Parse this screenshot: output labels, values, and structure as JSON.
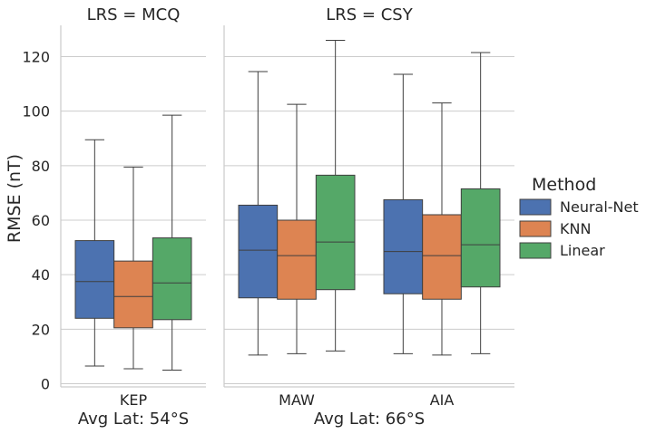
{
  "chart_data": {
    "type": "box",
    "ylabel": "RMSE (nT)",
    "ylim": [
      -1,
      133
    ],
    "yticks": [
      0,
      20,
      40,
      60,
      80,
      100,
      120
    ],
    "ytick_labels": [
      "0",
      "20",
      "40",
      "60",
      "80",
      "100",
      "120"
    ],
    "legend": {
      "title": "Method",
      "position": "right",
      "entries": [
        {
          "name": "Neural-Net",
          "color": "#4c72b0"
        },
        {
          "name": "KNN",
          "color": "#dd8452"
        },
        {
          "name": "Linear",
          "color": "#55a868"
        }
      ]
    },
    "panels": [
      {
        "title": "LRS = MCQ",
        "xlabel": "Avg Lat: 54°S",
        "categories": [
          "KEP"
        ],
        "series": [
          {
            "name": "Neural-Net",
            "boxes": [
              {
                "whislo": 6.5,
                "q1": 24,
                "med": 37.5,
                "q3": 52.5,
                "whishi": 89.5
              }
            ]
          },
          {
            "name": "KNN",
            "boxes": [
              {
                "whislo": 5.5,
                "q1": 20.5,
                "med": 32,
                "q3": 45,
                "whishi": 79.5
              }
            ]
          },
          {
            "name": "Linear",
            "boxes": [
              {
                "whislo": 5,
                "q1": 23.5,
                "med": 37,
                "q3": 53.5,
                "whishi": 98.5
              }
            ]
          }
        ]
      },
      {
        "title": "LRS = CSY",
        "xlabel": "Avg Lat: 66°S",
        "categories": [
          "MAW",
          "AIA"
        ],
        "series": [
          {
            "name": "Neural-Net",
            "boxes": [
              {
                "whislo": 10.5,
                "q1": 31.5,
                "med": 49,
                "q3": 65.5,
                "whishi": 114.5
              },
              {
                "whislo": 11,
                "q1": 33,
                "med": 48.5,
                "q3": 67.5,
                "whishi": 113.5
              }
            ]
          },
          {
            "name": "KNN",
            "boxes": [
              {
                "whislo": 11,
                "q1": 31,
                "med": 47,
                "q3": 60,
                "whishi": 102.5
              },
              {
                "whislo": 10.5,
                "q1": 31,
                "med": 47,
                "q3": 62,
                "whishi": 103
              }
            ]
          },
          {
            "name": "Linear",
            "boxes": [
              {
                "whislo": 12,
                "q1": 34.5,
                "med": 52,
                "q3": 76.5,
                "whishi": 126
              },
              {
                "whislo": 11,
                "q1": 35.5,
                "med": 51,
                "q3": 71.5,
                "whishi": 121.5
              }
            ]
          }
        ]
      }
    ]
  }
}
